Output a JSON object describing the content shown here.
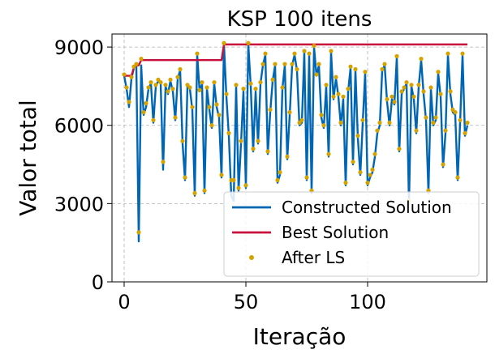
{
  "chart_data": {
    "type": "line",
    "title": "KSP 100 itens",
    "xlabel": "Iteração",
    "ylabel": "Valor total",
    "xlim": [
      -5,
      149
    ],
    "ylim": [
      0,
      9500
    ],
    "xticks": [
      0,
      50,
      100
    ],
    "xtick_labels": [
      "0",
      "50",
      "100"
    ],
    "yticks": [
      0,
      3000,
      6000,
      9000
    ],
    "ytick_labels": [
      "0",
      "3000",
      "6000",
      "9000"
    ],
    "grid": true,
    "legend_position": "lower-right",
    "x": [
      0,
      1,
      2,
      3,
      4,
      5,
      6,
      7,
      8,
      9,
      10,
      11,
      12,
      13,
      14,
      15,
      16,
      17,
      18,
      19,
      20,
      21,
      22,
      23,
      24,
      25,
      26,
      27,
      28,
      29,
      30,
      31,
      32,
      33,
      34,
      35,
      36,
      37,
      38,
      39,
      40,
      41,
      42,
      43,
      44,
      45,
      46,
      47,
      48,
      49,
      50,
      51,
      52,
      53,
      54,
      55,
      56,
      57,
      58,
      59,
      60,
      61,
      62,
      63,
      64,
      65,
      66,
      67,
      68,
      69,
      70,
      71,
      72,
      73,
      74,
      75,
      76,
      77,
      78,
      79,
      80,
      81,
      82,
      83,
      84,
      85,
      86,
      87,
      88,
      89,
      90,
      91,
      92,
      93,
      94,
      95,
      96,
      97,
      98,
      99,
      100,
      101,
      102,
      103,
      104,
      105,
      106,
      107,
      108,
      109,
      110,
      111,
      112,
      113,
      114,
      115,
      116,
      117,
      118,
      119,
      120,
      121,
      122,
      123,
      124,
      125,
      126,
      127,
      128,
      129,
      130,
      131,
      132,
      133,
      134,
      135,
      136,
      137,
      138,
      139,
      140,
      141
    ],
    "series": [
      {
        "name": "Constructed Solution",
        "kind": "line",
        "color": "#0066b3",
        "values": [
          7900,
          7400,
          6700,
          7800,
          8200,
          8300,
          1550,
          8300,
          6400,
          6700,
          7400,
          7600,
          6100,
          7500,
          7700,
          7600,
          4300,
          7500,
          7200,
          7700,
          7300,
          6200,
          7800,
          8100,
          5300,
          3900,
          7500,
          7400,
          6600,
          3300,
          8700,
          7300,
          7600,
          3400,
          7400,
          6600,
          5900,
          7600,
          6700,
          6300,
          4000,
          9100,
          7100,
          5600,
          3300,
          3100,
          7500,
          3500,
          5300,
          7300,
          3600,
          9100,
          7500,
          5000,
          7300,
          5300,
          7600,
          8300,
          8700,
          4900,
          6500,
          7700,
          8300,
          3800,
          4100,
          7400,
          8300,
          4700,
          6400,
          8300,
          8700,
          8100,
          6000,
          6100,
          8800,
          3900,
          8700,
          3400,
          9000,
          7900,
          8300,
          6300,
          5900,
          7500,
          4800,
          8800,
          7000,
          7800,
          7100,
          6000,
          7000,
          3700,
          7300,
          8200,
          4500,
          8100,
          5500,
          4100,
          6100,
          8000,
          3700,
          4000,
          4200,
          4800,
          5700,
          6000,
          8100,
          8300,
          6900,
          6000,
          7000,
          6800,
          8600,
          5000,
          7200,
          7400,
          7600,
          3000,
          7500,
          7000,
          5700,
          7500,
          8500,
          7200,
          6200,
          3400,
          7400,
          6000,
          6200,
          8000,
          7100,
          4400,
          5700,
          8700,
          7200,
          6500,
          6400,
          3900,
          6100,
          8700,
          5600,
          6000
        ]
      },
      {
        "name": "Best Solution",
        "kind": "line",
        "color": "#c8103c",
        "values": [
          7900,
          7900,
          7900,
          7900,
          8200,
          8300,
          8300,
          8500,
          8500,
          8500,
          8500,
          8500,
          8500,
          8500,
          8500,
          8500,
          8500,
          8500,
          8500,
          8500,
          8500,
          8500,
          8500,
          8500,
          8500,
          8500,
          8500,
          8500,
          8500,
          8500,
          8500,
          8500,
          8500,
          8500,
          8500,
          8500,
          8500,
          8500,
          8500,
          8500,
          8500,
          9100,
          9100,
          9100,
          9100,
          9100,
          9100,
          9100,
          9100,
          9100,
          9100,
          9100,
          9100,
          9100,
          9100,
          9100,
          9100,
          9100,
          9100,
          9100,
          9100,
          9100,
          9100,
          9100,
          9100,
          9100,
          9100,
          9100,
          9100,
          9100,
          9100,
          9100,
          9100,
          9100,
          9100,
          9100,
          9100,
          9100,
          9100,
          9100,
          9100,
          9100,
          9100,
          9100,
          9100,
          9100,
          9100,
          9100,
          9100,
          9100,
          9100,
          9100,
          9100,
          9100,
          9100,
          9100,
          9100,
          9100,
          9100,
          9100,
          9100,
          9100,
          9100,
          9100,
          9100,
          9100,
          9100,
          9100,
          9100,
          9100,
          9100,
          9100,
          9100,
          9100,
          9100,
          9100,
          9100,
          9100,
          9100,
          9100,
          9100,
          9100,
          9100,
          9100,
          9100,
          9100,
          9100,
          9100,
          9100,
          9100,
          9100,
          9100,
          9100,
          9100,
          9100,
          9100,
          9100,
          9100,
          9100,
          9100,
          9100,
          9100
        ]
      },
      {
        "name": "After LS",
        "kind": "scatter",
        "color": "#d4a300",
        "values": [
          7950,
          7450,
          6900,
          7850,
          8250,
          8350,
          1900,
          8550,
          6500,
          6850,
          7450,
          7650,
          6200,
          7550,
          7750,
          7650,
          4600,
          7550,
          7300,
          7750,
          7400,
          6300,
          7850,
          8150,
          5400,
          4000,
          7550,
          7450,
          6700,
          3400,
          8750,
          7350,
          7650,
          3500,
          7450,
          6700,
          6000,
          7650,
          6800,
          6400,
          4100,
          9150,
          7200,
          5700,
          3900,
          3900,
          7550,
          3600,
          5400,
          7400,
          3700,
          9150,
          7600,
          5100,
          7400,
          5400,
          7650,
          8350,
          8750,
          5000,
          6600,
          7750,
          8350,
          3900,
          4200,
          7450,
          8350,
          4800,
          6500,
          8350,
          8750,
          8150,
          6100,
          6200,
          8850,
          4000,
          8750,
          3500,
          9050,
          7950,
          8350,
          6400,
          6000,
          7550,
          4900,
          8850,
          7100,
          7850,
          7200,
          6100,
          7100,
          3800,
          7400,
          8250,
          4600,
          8150,
          5600,
          4200,
          6200,
          8050,
          3800,
          4100,
          4300,
          4900,
          5800,
          6100,
          8150,
          8350,
          7000,
          6100,
          7100,
          6900,
          8650,
          5100,
          7300,
          7450,
          7650,
          3100,
          7550,
          7100,
          5800,
          7550,
          8550,
          7300,
          6300,
          3500,
          7450,
          6100,
          6300,
          8050,
          7200,
          4500,
          5800,
          8750,
          7300,
          6600,
          6500,
          4000,
          6200,
          8750,
          5700,
          6100
        ]
      }
    ]
  }
}
